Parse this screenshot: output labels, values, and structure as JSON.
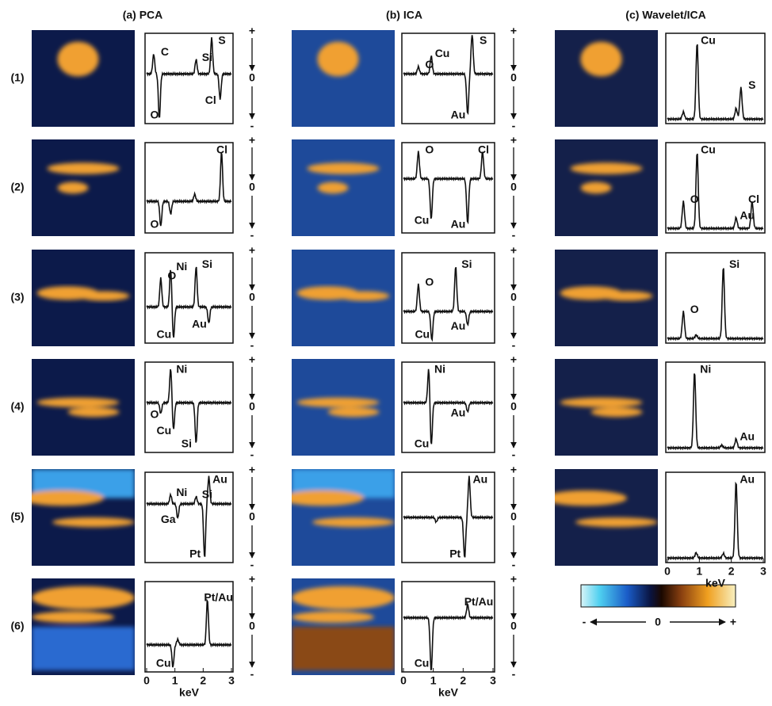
{
  "columns": [
    "(a) PCA",
    "(b) ICA",
    "(c) Wavelet/ICA"
  ],
  "rows": [
    "(1)",
    "(2)",
    "(3)",
    "(4)",
    "(5)",
    "(6)"
  ],
  "panels": [
    [
      [
        "C",
        "Si",
        "S",
        "O",
        "Cl"
      ],
      [
        "Cl",
        "O"
      ],
      [
        "O",
        "Ni",
        "Si",
        "Cu",
        "Au"
      ],
      [
        "Ni",
        "O",
        "Cu",
        "Si"
      ],
      [
        "Ni",
        "Si",
        "Au",
        "Ga",
        "Pt"
      ],
      [
        "Pt/Au",
        "Cu"
      ]
    ],
    [
      [
        "O",
        "Cu",
        "S",
        "Au"
      ],
      [
        "O",
        "Cl",
        "Cu",
        "Au"
      ],
      [
        "O",
        "Si",
        "Au",
        "Cu"
      ],
      [
        "Ni",
        "Cu",
        "Au"
      ],
      [
        "Au",
        "Pt"
      ],
      [
        "Pt/Au",
        "Cu"
      ]
    ],
    [
      [
        "Cu",
        "S"
      ],
      [
        "Cu",
        "O",
        "Au",
        "Cl"
      ],
      [
        "Si",
        "O"
      ],
      [
        "Ni",
        "Au"
      ],
      [
        "Au"
      ]
    ]
  ],
  "x_axis": {
    "ticks": [
      "0",
      "1",
      "2",
      "3"
    ],
    "label": "keV"
  },
  "signed_axis": [
    "+",
    "0",
    "-"
  ],
  "colorbar": {
    "labels": [
      "-",
      "0",
      "+"
    ]
  }
}
